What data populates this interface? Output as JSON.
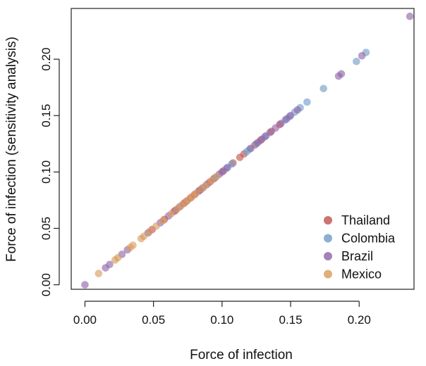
{
  "chart_data": {
    "type": "scatter",
    "xlabel": "Force of infection",
    "ylabel": "Force of infection (sensitivity analysis)",
    "xlim": [
      -0.01,
      0.24
    ],
    "ylim": [
      -0.004,
      0.245
    ],
    "x_ticks": [
      0.0,
      0.05,
      0.1,
      0.15,
      0.2
    ],
    "x_tick_labels": [
      "0.00",
      "0.05",
      "0.10",
      "0.15",
      "0.20"
    ],
    "y_ticks": [
      0.0,
      0.05,
      0.1,
      0.15,
      0.2
    ],
    "y_tick_labels": [
      "0.00",
      "0.05",
      "0.10",
      "0.15",
      "0.20"
    ],
    "grid": false,
    "legend_position": "bottom-right",
    "series": [
      {
        "name": "Thailand",
        "color": "#c0504d",
        "x": [
          0.049,
          0.058,
          0.066,
          0.072,
          0.077,
          0.08,
          0.084,
          0.091,
          0.094,
          0.101,
          0.108,
          0.113,
          0.116,
          0.124,
          0.128,
          0.136,
          0.142
        ],
        "y": [
          0.049,
          0.058,
          0.066,
          0.072,
          0.077,
          0.08,
          0.084,
          0.091,
          0.094,
          0.101,
          0.108,
          0.113,
          0.116,
          0.124,
          0.128,
          0.136,
          0.142
        ]
      },
      {
        "name": "Colombia",
        "color": "#6f9bc7",
        "x": [
          0.095,
          0.103,
          0.107,
          0.118,
          0.12,
          0.125,
          0.131,
          0.146,
          0.149,
          0.153,
          0.157,
          0.162,
          0.174,
          0.198,
          0.205
        ],
        "y": [
          0.095,
          0.103,
          0.107,
          0.118,
          0.12,
          0.125,
          0.131,
          0.146,
          0.149,
          0.153,
          0.157,
          0.162,
          0.174,
          0.198,
          0.206
        ]
      },
      {
        "name": "Brazil",
        "color": "#8e63a8",
        "x": [
          0.0,
          0.015,
          0.018,
          0.027,
          0.031,
          0.046,
          0.055,
          0.061,
          0.065,
          0.069,
          0.074,
          0.083,
          0.086,
          0.089,
          0.098,
          0.1,
          0.104,
          0.121,
          0.126,
          0.129,
          0.132,
          0.135,
          0.139,
          0.143,
          0.147,
          0.15,
          0.155,
          0.185,
          0.187,
          0.202,
          0.237
        ],
        "y": [
          0.0,
          0.015,
          0.018,
          0.027,
          0.031,
          0.046,
          0.055,
          0.061,
          0.065,
          0.069,
          0.074,
          0.083,
          0.086,
          0.089,
          0.098,
          0.1,
          0.104,
          0.121,
          0.126,
          0.129,
          0.132,
          0.135,
          0.139,
          0.143,
          0.147,
          0.15,
          0.155,
          0.185,
          0.187,
          0.203,
          0.238
        ]
      },
      {
        "name": "Mexico",
        "color": "#d99a5a",
        "x": [
          0.01,
          0.022,
          0.024,
          0.033,
          0.035,
          0.041,
          0.043,
          0.047,
          0.052,
          0.057,
          0.063,
          0.067,
          0.07,
          0.073,
          0.075,
          0.078,
          0.081,
          0.085,
          0.088,
          0.092,
          0.096
        ],
        "y": [
          0.01,
          0.022,
          0.024,
          0.033,
          0.035,
          0.041,
          0.043,
          0.047,
          0.052,
          0.057,
          0.063,
          0.067,
          0.07,
          0.073,
          0.075,
          0.078,
          0.081,
          0.085,
          0.088,
          0.092,
          0.096
        ]
      }
    ]
  }
}
